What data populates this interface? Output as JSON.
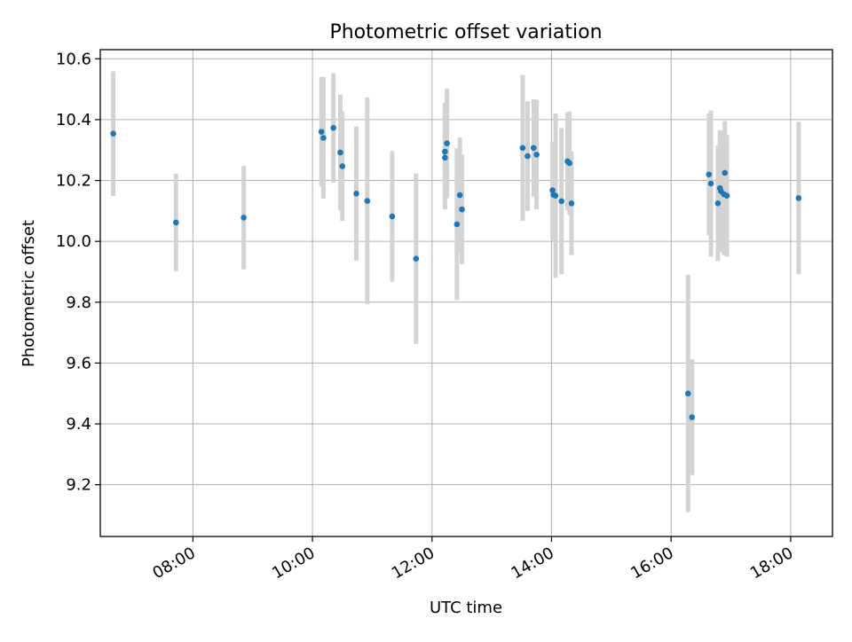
{
  "chart_data": {
    "type": "scatter",
    "title": "Photometric offset variation",
    "xlabel": "UTC time",
    "ylabel": "Photometric offset",
    "x_unit": "hours UTC",
    "xlim": [
      "06:27",
      "18:42"
    ],
    "ylim": [
      9.03,
      10.63
    ],
    "grid": true,
    "x_ticks": [
      "08:00",
      "10:00",
      "12:00",
      "14:00",
      "16:00",
      "18:00"
    ],
    "y_ticks": [
      "9.2",
      "9.4",
      "9.6",
      "9.8",
      "10.0",
      "10.2",
      "10.4",
      "10.6"
    ],
    "colors": {
      "points": "#1f77b4",
      "errorbars": "#d3d3d3",
      "grid": "#b0b0b0"
    },
    "series": [
      {
        "points": [
          {
            "x": "06:40",
            "y": 10.354,
            "err": 0.205
          },
          {
            "x": "07:43",
            "y": 10.062,
            "err": 0.16
          },
          {
            "x": "08:51",
            "y": 10.078,
            "err": 0.17
          },
          {
            "x": "10:09",
            "y": 10.36,
            "err": 0.18
          },
          {
            "x": "10:11",
            "y": 10.34,
            "err": 0.2
          },
          {
            "x": "10:21",
            "y": 10.373,
            "err": 0.18
          },
          {
            "x": "10:28",
            "y": 10.292,
            "err": 0.19
          },
          {
            "x": "10:30",
            "y": 10.247,
            "err": 0.18
          },
          {
            "x": "10:44",
            "y": 10.157,
            "err": 0.22
          },
          {
            "x": "10:55",
            "y": 10.133,
            "err": 0.34
          },
          {
            "x": "11:20",
            "y": 10.082,
            "err": 0.215
          },
          {
            "x": "11:44",
            "y": 9.943,
            "err": 0.28
          },
          {
            "x": "12:13",
            "y": 10.275,
            "err": 0.17
          },
          {
            "x": "12:13",
            "y": 10.295,
            "err": 0.16
          },
          {
            "x": "12:15",
            "y": 10.322,
            "err": 0.18
          },
          {
            "x": "12:25",
            "y": 10.056,
            "err": 0.25
          },
          {
            "x": "12:28",
            "y": 10.152,
            "err": 0.19
          },
          {
            "x": "12:30",
            "y": 10.105,
            "err": 0.18
          },
          {
            "x": "13:31",
            "y": 10.307,
            "err": 0.24
          },
          {
            "x": "13:36",
            "y": 10.28,
            "err": 0.18
          },
          {
            "x": "13:42",
            "y": 10.307,
            "err": 0.16
          },
          {
            "x": "13:45",
            "y": 10.285,
            "err": 0.18
          },
          {
            "x": "14:01",
            "y": 10.168,
            "err": 0.16
          },
          {
            "x": "14:02",
            "y": 10.153,
            "err": 0.15
          },
          {
            "x": "14:04",
            "y": 10.15,
            "err": 0.27
          },
          {
            "x": "14:10",
            "y": 10.132,
            "err": 0.24
          },
          {
            "x": "14:16",
            "y": 10.263,
            "err": 0.16
          },
          {
            "x": "14:18",
            "y": 10.257,
            "err": 0.17
          },
          {
            "x": "14:20",
            "y": 10.125,
            "err": 0.17
          },
          {
            "x": "16:17",
            "y": 9.5,
            "err": 0.39
          },
          {
            "x": "16:21",
            "y": 9.422,
            "err": 0.19
          },
          {
            "x": "16:38",
            "y": 10.22,
            "err": 0.2
          },
          {
            "x": "16:40",
            "y": 10.19,
            "err": 0.24
          },
          {
            "x": "16:47",
            "y": 10.125,
            "err": 0.19
          },
          {
            "x": "16:49",
            "y": 10.175,
            "err": 0.19
          },
          {
            "x": "16:50",
            "y": 10.165,
            "err": 0.2
          },
          {
            "x": "16:53",
            "y": 10.155,
            "err": 0.2
          },
          {
            "x": "16:54",
            "y": 10.225,
            "err": 0.17
          },
          {
            "x": "16:56",
            "y": 10.15,
            "err": 0.2
          },
          {
            "x": "18:08",
            "y": 10.142,
            "err": 0.25
          }
        ]
      }
    ]
  }
}
